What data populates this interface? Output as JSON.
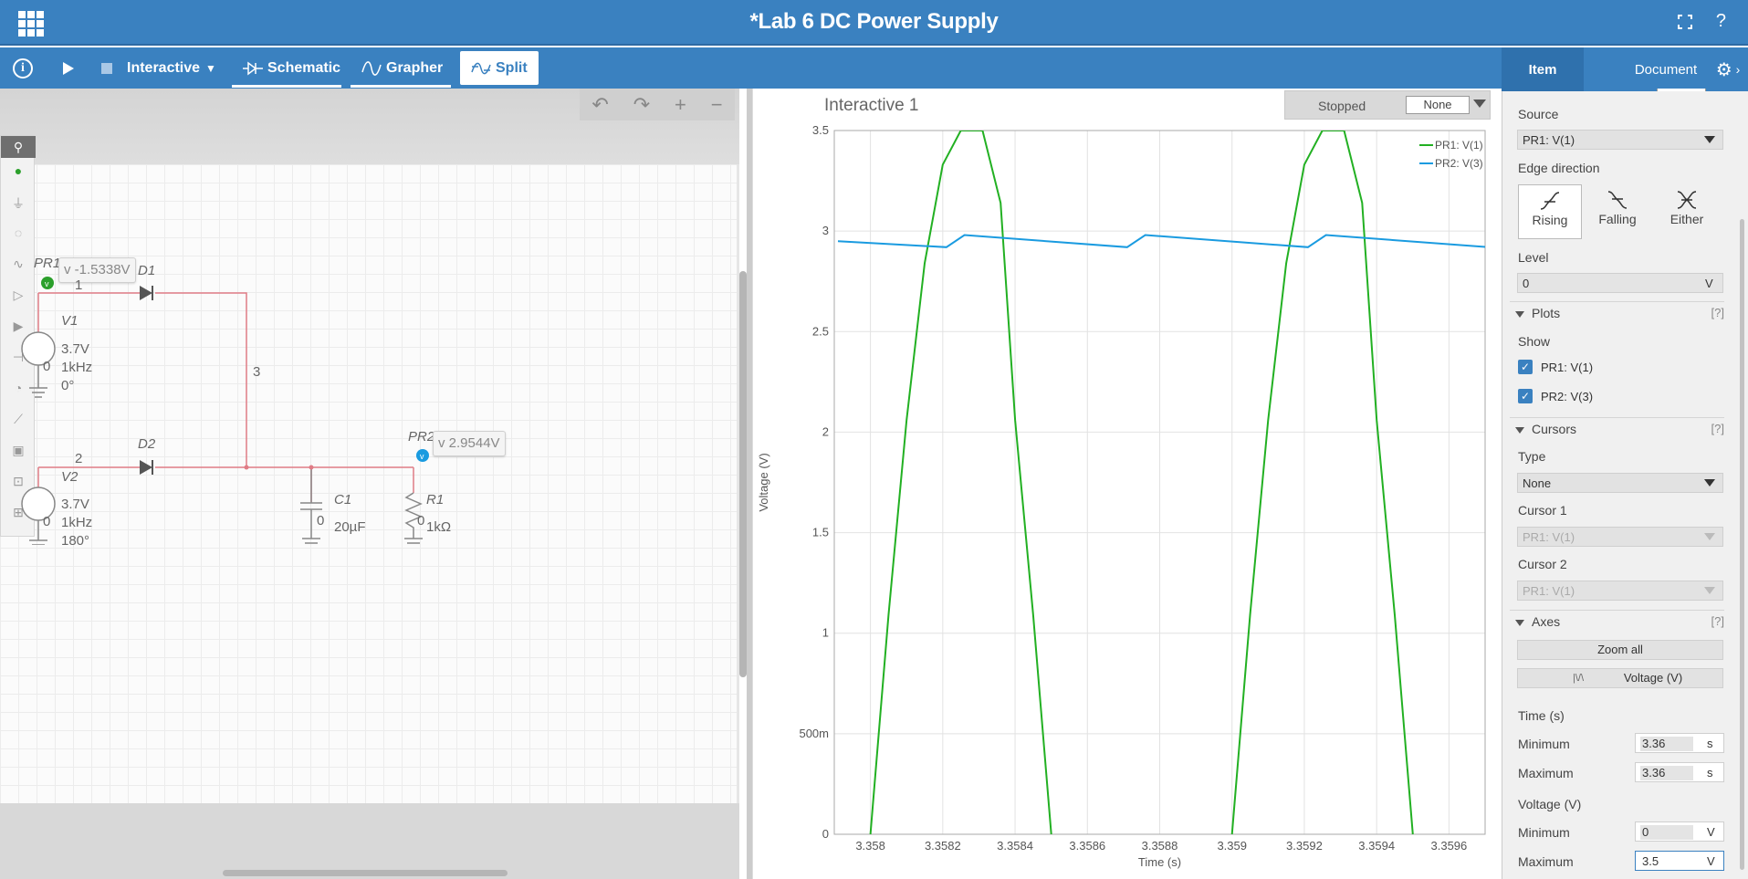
{
  "app": {
    "title": "*Lab 6 DC Power Supply"
  },
  "toolbar": {
    "mode_label": "Interactive",
    "tabs": [
      {
        "label": "Schematic"
      },
      {
        "label": "Grapher"
      },
      {
        "label": "Split"
      }
    ],
    "active_tab": "Split"
  },
  "right_tabs": {
    "item": "Item",
    "document": "Document"
  },
  "schematic": {
    "probe1": {
      "name": "PR1",
      "reading": "v -1.5338V"
    },
    "probe2": {
      "name": "PR2",
      "reading": "v 2.9544V"
    },
    "components": {
      "d1": "D1",
      "d2": "D2",
      "v1": {
        "name": "V1",
        "voltage": "3.7V",
        "freq": "1kHz",
        "phase": "0°"
      },
      "v2": {
        "name": "V2",
        "voltage": "3.7V",
        "freq": "1kHz",
        "phase": "180°"
      },
      "c1": {
        "name": "C1",
        "value": "20µF"
      },
      "r1": {
        "name": "R1",
        "value": "1kΩ"
      }
    },
    "nets": {
      "n1": "1",
      "n2": "2",
      "n3": "3",
      "zero": "0"
    }
  },
  "grapher": {
    "title": "Interactive 1",
    "status": "Stopped",
    "status_select": "None"
  },
  "chart_data": {
    "type": "line",
    "xlabel": "Time (s)",
    "ylabel": "Voltage (V)",
    "xlim": [
      3.3579,
      3.3597
    ],
    "ylim": [
      0,
      3.5
    ],
    "x_ticks": [
      "3.358",
      "3.3582",
      "3.3584",
      "3.3586",
      "3.3588",
      "3.359",
      "3.3592",
      "3.3594",
      "3.3596"
    ],
    "y_ticks": [
      "0",
      "500m",
      "1",
      "1.5",
      "2",
      "2.5",
      "3",
      "3.5"
    ],
    "grid": true,
    "legend_position": "top-right",
    "series": [
      {
        "name": "PR1: V(1)",
        "color": "#22b022",
        "x": [
          3.358,
          3.35805,
          3.3581,
          3.35815,
          3.3582,
          3.35825,
          3.35831,
          3.35836,
          3.3584,
          3.35845,
          3.3585,
          "gap",
          3.359,
          3.35905,
          3.3591,
          3.35915,
          3.3592,
          3.35925,
          3.35931,
          3.35936,
          3.3594,
          3.35945,
          3.3595
        ],
        "y": [
          0,
          1.09,
          2.06,
          2.84,
          3.33,
          3.5,
          3.5,
          3.14,
          2.06,
          1.09,
          0,
          "gap",
          0,
          1.09,
          2.06,
          2.84,
          3.33,
          3.5,
          3.5,
          3.14,
          2.06,
          1.09,
          0
        ]
      },
      {
        "name": "PR2: V(3)",
        "color": "#1a9be0",
        "x": [
          3.35791,
          3.35821,
          3.35826,
          3.35871,
          3.35876,
          3.35921,
          3.35926,
          3.35971
        ],
        "y": [
          2.95,
          2.92,
          2.98,
          2.92,
          2.98,
          2.92,
          2.98,
          2.92
        ]
      }
    ]
  },
  "props": {
    "source_label": "Source",
    "source_value": "PR1: V(1)",
    "edge_label": "Edge direction",
    "edge_options": [
      "Rising",
      "Falling",
      "Either"
    ],
    "edge_selected": "Rising",
    "level_label": "Level",
    "level_value": "0",
    "level_unit": "V",
    "plots_section": "Plots",
    "show_label": "Show",
    "show_items": [
      "PR1: V(1)",
      "PR2: V(3)"
    ],
    "cursors_section": "Cursors",
    "type_label": "Type",
    "type_value": "None",
    "cursor1_label": "Cursor 1",
    "cursor1_value": "PR1: V(1)",
    "cursor2_label": "Cursor 2",
    "cursor2_value": "PR1: V(1)",
    "axes_section": "Axes",
    "zoom_all": "Zoom all",
    "voltage_btn": "Voltage (V)",
    "time_label": "Time (s)",
    "time_min_label": "Minimum",
    "time_min": "3.36",
    "time_max_label": "Maximum",
    "time_max": "3.36",
    "time_unit": "s",
    "voltage_label": "Voltage (V)",
    "volt_min_label": "Minimum",
    "volt_min": "0",
    "volt_max_label": "Maximum",
    "volt_max": "3.5",
    "volt_unit": "V",
    "help": "[?]"
  }
}
